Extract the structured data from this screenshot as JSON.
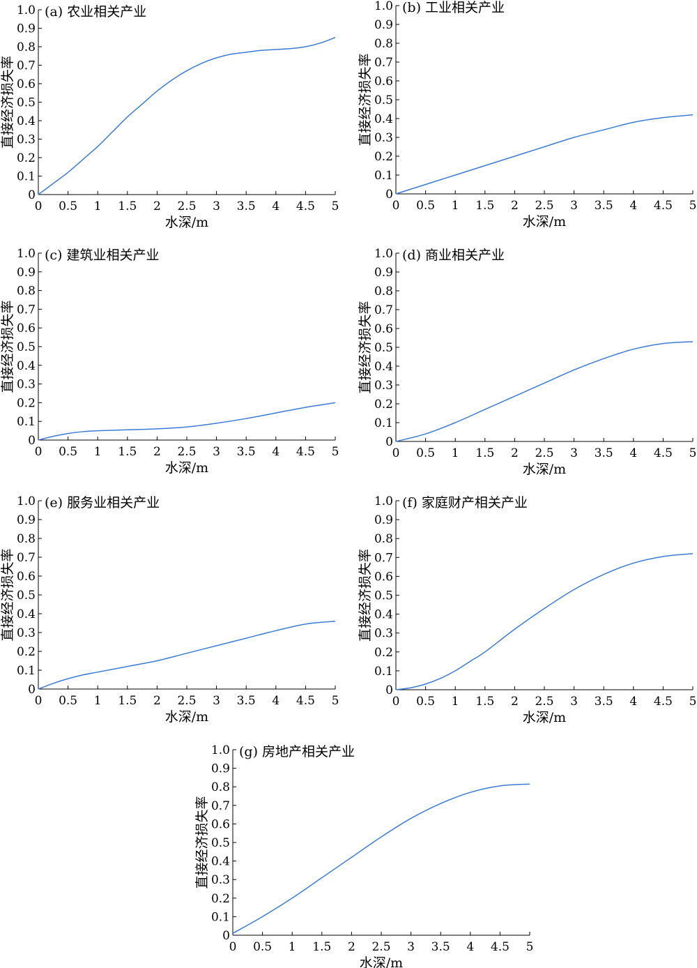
{
  "colors": {
    "line": "#3a7bd5",
    "axis": "#000000"
  },
  "chart_data": [
    {
      "type": "line",
      "title": "(a) 农业相关产业",
      "xlabel": "水深/m",
      "ylabel": "直接经济损失率",
      "xlim": [
        0,
        5
      ],
      "ylim": [
        0,
        1.0
      ],
      "xticks": [
        "0",
        "0.5",
        "1",
        "1.5",
        "2",
        "2.5",
        "3",
        "3.5",
        "4",
        "4.5",
        "5"
      ],
      "yticks": [
        "0",
        "0.1",
        "0.2",
        "0.3",
        "0.4",
        "0.5",
        "0.6",
        "0.7",
        "0.8",
        "0.9",
        "1.0"
      ],
      "series": [
        {
          "x": [
            0,
            0.25,
            0.5,
            0.75,
            1,
            1.25,
            1.5,
            1.75,
            2,
            2.25,
            2.5,
            2.75,
            3,
            3.25,
            3.5,
            3.75,
            4,
            4.25,
            4.5,
            4.75,
            5
          ],
          "y": [
            0,
            0.06,
            0.12,
            0.19,
            0.26,
            0.34,
            0.42,
            0.49,
            0.56,
            0.62,
            0.67,
            0.71,
            0.74,
            0.76,
            0.77,
            0.78,
            0.785,
            0.79,
            0.8,
            0.82,
            0.85
          ]
        }
      ]
    },
    {
      "type": "line",
      "title": "(b) 工业相关产业",
      "xlabel": "水深/m",
      "ylabel": "直接经济损失率",
      "xlim": [
        0,
        5
      ],
      "ylim": [
        0,
        1.0
      ],
      "xticks": [
        "0",
        "0.5",
        "1",
        "1.5",
        "2",
        "2.5",
        "3",
        "3.5",
        "4",
        "4.5",
        "5"
      ],
      "yticks": [
        "0",
        "0.1",
        "0.2",
        "0.3",
        "0.4",
        "0.5",
        "0.6",
        "0.7",
        "0.8",
        "0.9",
        "1.0"
      ],
      "series": [
        {
          "x": [
            0,
            0.5,
            1,
            1.5,
            2,
            2.5,
            3,
            3.5,
            4,
            4.5,
            5
          ],
          "y": [
            0,
            0.05,
            0.1,
            0.15,
            0.2,
            0.25,
            0.3,
            0.34,
            0.38,
            0.405,
            0.42
          ]
        }
      ]
    },
    {
      "type": "line",
      "title": "(c) 建筑业相关产业",
      "xlabel": "水深/m",
      "ylabel": "直接经济损失率",
      "xlim": [
        0,
        5
      ],
      "ylim": [
        0,
        1.0
      ],
      "xticks": [
        "0",
        "0.5",
        "1",
        "1.5",
        "2",
        "2.5",
        "3",
        "3.5",
        "4",
        "4.5",
        "5"
      ],
      "yticks": [
        "0",
        "0.1",
        "0.2",
        "0.3",
        "0.4",
        "0.5",
        "0.6",
        "0.7",
        "0.8",
        "0.9",
        "1.0"
      ],
      "series": [
        {
          "x": [
            0,
            0.25,
            0.5,
            0.75,
            1,
            1.5,
            2,
            2.5,
            3,
            3.5,
            4,
            4.5,
            5
          ],
          "y": [
            0,
            0.02,
            0.035,
            0.045,
            0.05,
            0.055,
            0.06,
            0.07,
            0.09,
            0.115,
            0.145,
            0.175,
            0.2
          ]
        }
      ]
    },
    {
      "type": "line",
      "title": "(d) 商业相关产业",
      "xlabel": "水深/m",
      "ylabel": "直接经济损失率",
      "xlim": [
        0,
        5
      ],
      "ylim": [
        0,
        1.0
      ],
      "xticks": [
        "0",
        "0.5",
        "1",
        "1.5",
        "2",
        "2.5",
        "3",
        "3.5",
        "4",
        "4.5",
        "5"
      ],
      "yticks": [
        "0",
        "0.1",
        "0.2",
        "0.3",
        "0.4",
        "0.5",
        "0.6",
        "0.7",
        "0.8",
        "0.9",
        "1.0"
      ],
      "series": [
        {
          "x": [
            0,
            0.5,
            1,
            1.5,
            2,
            2.5,
            3,
            3.5,
            4,
            4.5,
            5
          ],
          "y": [
            0,
            0.04,
            0.1,
            0.17,
            0.24,
            0.31,
            0.38,
            0.44,
            0.49,
            0.52,
            0.53
          ]
        }
      ]
    },
    {
      "type": "line",
      "title": "(e) 服务业相关产业",
      "xlabel": "水深/m",
      "ylabel": "直接经济损失率",
      "xlim": [
        0,
        5
      ],
      "ylim": [
        0,
        1.0
      ],
      "xticks": [
        "0",
        "0.5",
        "1",
        "1.5",
        "2",
        "2.5",
        "3",
        "3.5",
        "4",
        "4.5",
        "5"
      ],
      "yticks": [
        "0",
        "0.1",
        "0.2",
        "0.3",
        "0.4",
        "0.5",
        "0.6",
        "0.7",
        "0.8",
        "0.9",
        "1.0"
      ],
      "series": [
        {
          "x": [
            0,
            0.25,
            0.5,
            0.75,
            1,
            1.5,
            2,
            2.5,
            3,
            3.5,
            4,
            4.5,
            5
          ],
          "y": [
            0,
            0.03,
            0.055,
            0.075,
            0.09,
            0.12,
            0.15,
            0.19,
            0.23,
            0.27,
            0.31,
            0.345,
            0.36
          ]
        }
      ]
    },
    {
      "type": "line",
      "title": "(f) 家庭财产相关产业",
      "xlabel": "水深/m",
      "ylabel": "直接经济损失率",
      "xlim": [
        0,
        5
      ],
      "ylim": [
        0,
        1.0
      ],
      "xticks": [
        "0",
        "0.5",
        "1",
        "1.5",
        "2",
        "2.5",
        "3",
        "3.5",
        "4",
        "4.5",
        "5"
      ],
      "yticks": [
        "0",
        "0.1",
        "0.2",
        "0.3",
        "0.4",
        "0.5",
        "0.6",
        "0.7",
        "0.8",
        "0.9",
        "1.0"
      ],
      "series": [
        {
          "x": [
            0,
            0.25,
            0.5,
            0.75,
            1,
            1.25,
            1.5,
            2,
            2.5,
            3,
            3.5,
            4,
            4.5,
            5
          ],
          "y": [
            0,
            0.01,
            0.03,
            0.06,
            0.1,
            0.15,
            0.2,
            0.32,
            0.43,
            0.53,
            0.61,
            0.67,
            0.705,
            0.72
          ]
        }
      ]
    },
    {
      "type": "line",
      "title": "(g) 房地产相关产业",
      "xlabel": "水深/m",
      "ylabel": "直接经济损失率",
      "xlim": [
        0,
        5
      ],
      "ylim": [
        0,
        1.0
      ],
      "xticks": [
        "0",
        "0.5",
        "1",
        "1.5",
        "2",
        "2.5",
        "3",
        "3.5",
        "4",
        "4.5",
        "5"
      ],
      "yticks": [
        "0",
        "0.1",
        "0.2",
        "0.3",
        "0.4",
        "0.5",
        "0.6",
        "0.7",
        "0.8",
        "0.9",
        "1.0"
      ],
      "series": [
        {
          "x": [
            0,
            0.5,
            1,
            1.5,
            2,
            2.5,
            3,
            3.5,
            4,
            4.5,
            5
          ],
          "y": [
            0.01,
            0.1,
            0.2,
            0.31,
            0.42,
            0.53,
            0.63,
            0.71,
            0.77,
            0.805,
            0.815
          ]
        }
      ]
    }
  ]
}
